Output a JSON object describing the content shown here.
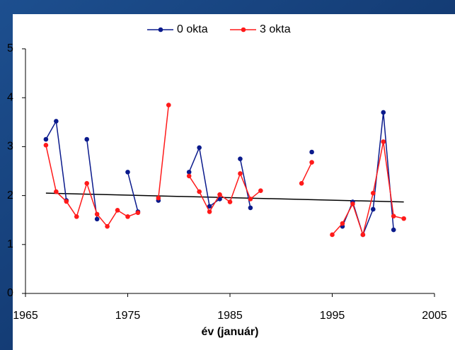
{
  "chart_data": {
    "type": "line",
    "x_label": "év (január)",
    "x": [
      1967,
      1968,
      1969,
      1970,
      1971,
      1972,
      1973,
      1974,
      1975,
      1976,
      1977,
      1978,
      1979,
      1980,
      1981,
      1982,
      1983,
      1984,
      1985,
      1986,
      1987,
      1988,
      1989,
      1990,
      1991,
      1992,
      1993,
      1994,
      1995,
      1996,
      1997,
      1998,
      1999,
      2000,
      2001,
      2002
    ],
    "series": [
      {
        "name": "0 okta",
        "color": "#0a1a8c",
        "values": [
          3.15,
          3.52,
          1.9,
          null,
          3.15,
          1.52,
          null,
          null,
          2.48,
          1.67,
          null,
          1.9,
          null,
          null,
          2.48,
          2.98,
          1.78,
          1.93,
          null,
          2.75,
          1.75,
          null,
          null,
          null,
          null,
          null,
          2.89,
          null,
          null,
          1.37,
          1.87,
          1.2,
          1.72,
          3.7,
          1.3,
          null
        ]
      },
      {
        "name": "3 okta",
        "color": "#ff1a1a",
        "values": [
          3.03,
          2.08,
          1.88,
          1.57,
          2.25,
          1.62,
          1.37,
          1.7,
          1.57,
          1.65,
          null,
          1.95,
          3.85,
          null,
          2.4,
          2.08,
          1.67,
          2.02,
          1.87,
          2.45,
          1.93,
          2.1,
          null,
          null,
          null,
          2.25,
          2.68,
          null,
          1.2,
          1.43,
          1.83,
          1.2,
          2.05,
          3.1,
          1.58,
          1.53
        ]
      }
    ],
    "trend": {
      "color": "#000000",
      "x": [
        1967,
        2002
      ],
      "values": [
        2.05,
        1.87
      ]
    },
    "xlim": [
      1965,
      2005
    ],
    "xticks": [
      1965,
      1975,
      1985,
      1995,
      2005
    ],
    "ylim": [
      0,
      5
    ],
    "yticks": [
      0,
      1,
      2,
      3,
      4,
      5
    ]
  }
}
